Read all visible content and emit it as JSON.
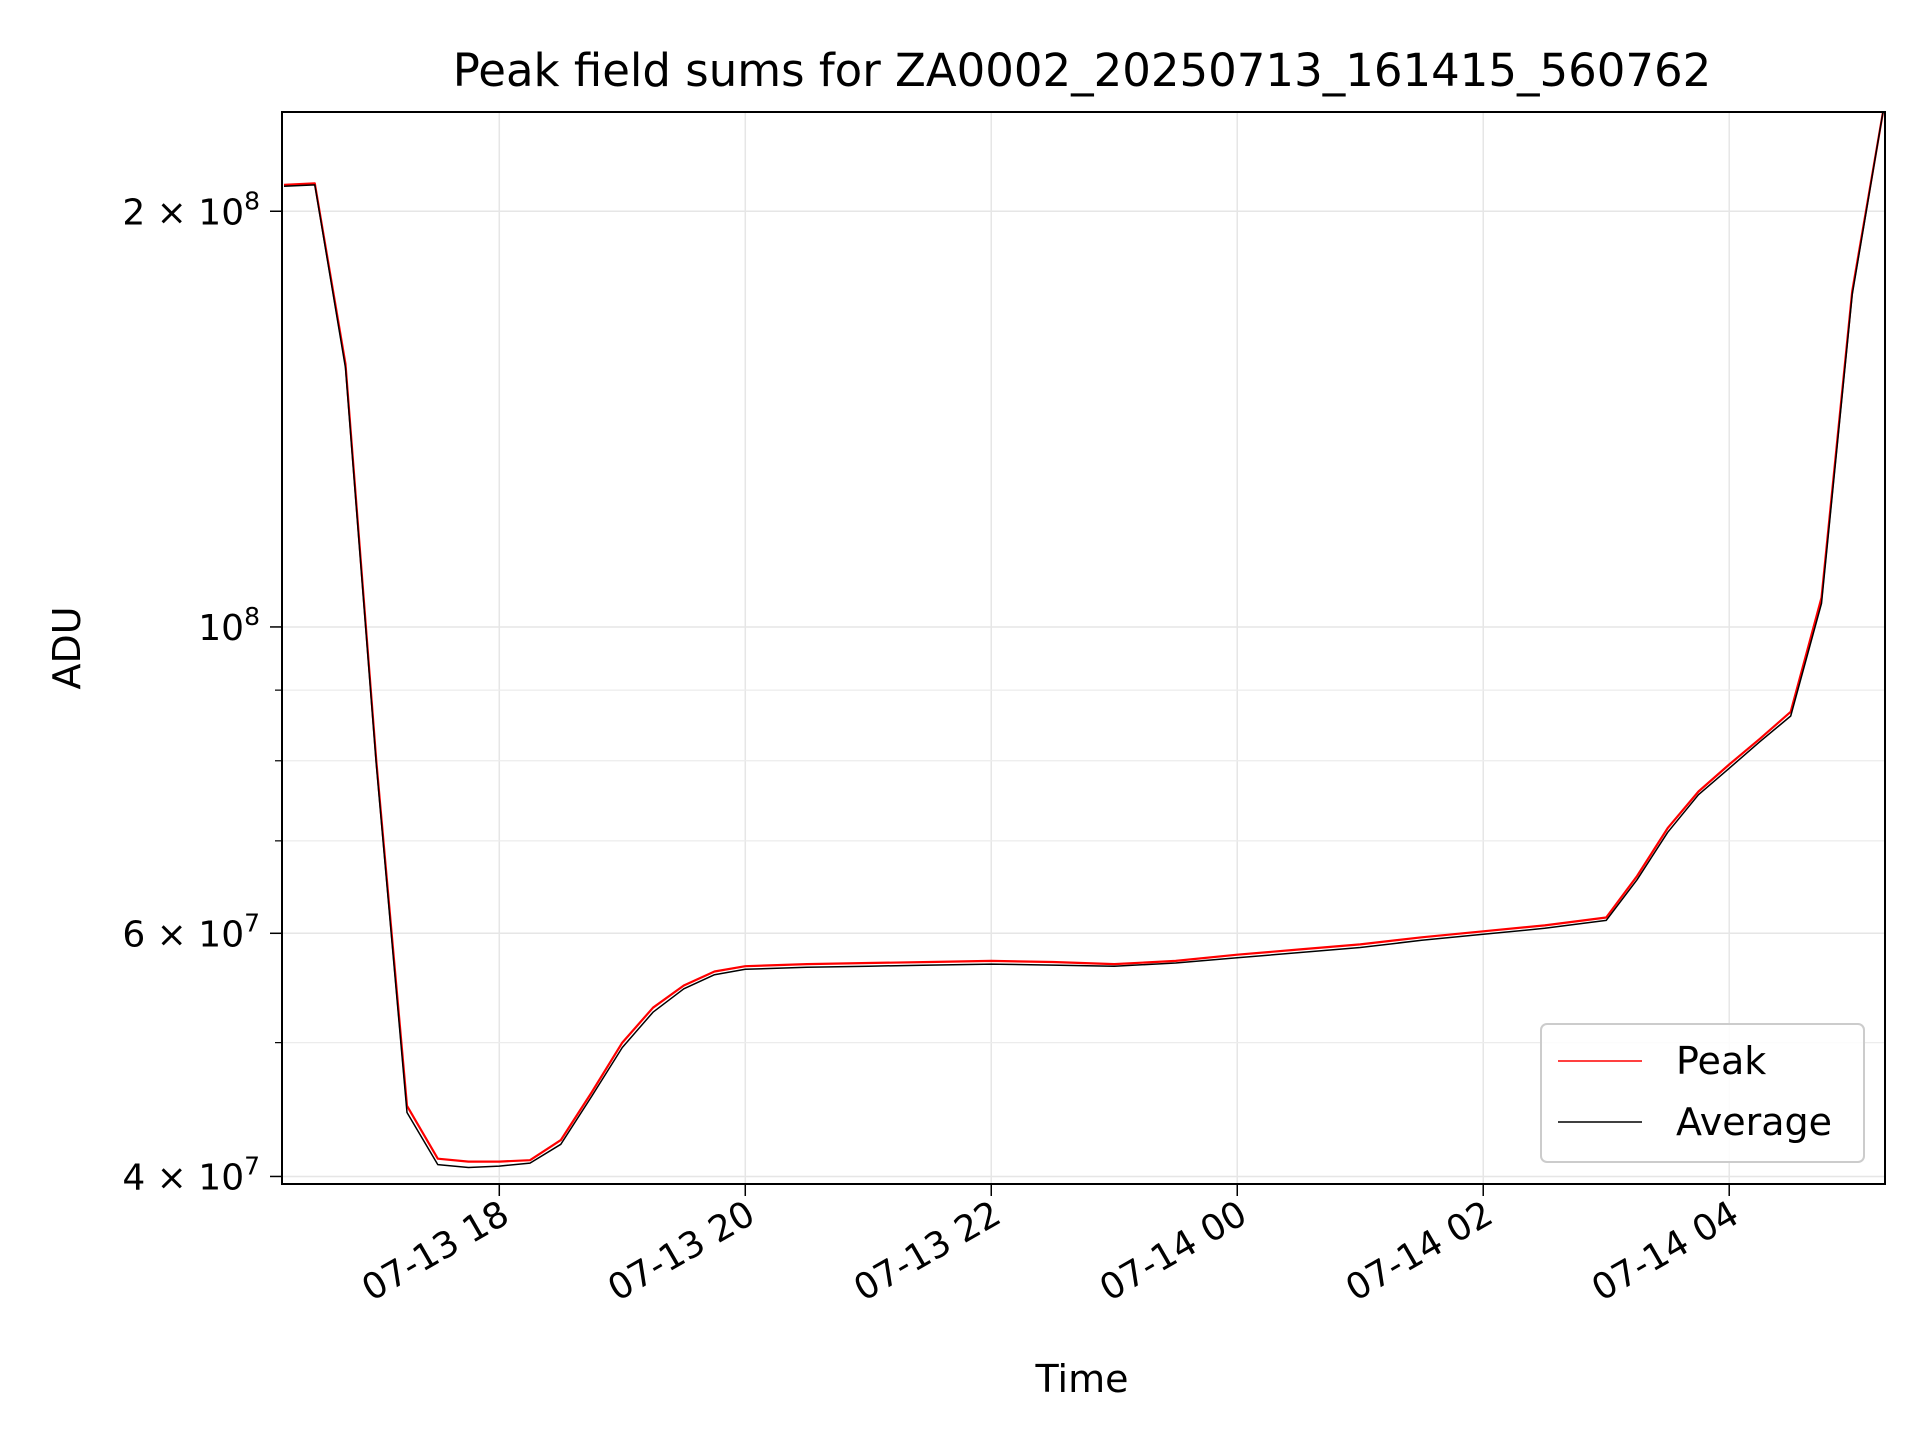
{
  "chart_data": {
    "type": "line",
    "title": "Peak field sums for ZA0002_20250713_161415_560762",
    "xlabel": "Time",
    "ylabel": "ADU",
    "yscale": "log",
    "grid": true,
    "legend_position": "lower-right",
    "x_range": [
      "2025-07-13 16:14",
      "2025-07-14 05:16"
    ],
    "ylim": [
      39500000,
      236000000
    ],
    "x_ticks": [
      "07-13 18",
      "07-13 20",
      "07-13 22",
      "07-14 00",
      "07-14 02",
      "07-14 04"
    ],
    "y_major_ticks": [
      {
        "value": 40000000,
        "label": "4 × 10",
        "exp": "7"
      },
      {
        "value": 60000000,
        "label": "6 × 10",
        "exp": "7"
      },
      {
        "value": 100000000,
        "label": "10",
        "exp": "8"
      },
      {
        "value": 200000000,
        "label": "2 × 10",
        "exp": "8"
      }
    ],
    "y_minor_ticks": [
      50000000,
      70000000,
      80000000,
      90000000
    ],
    "series": [
      {
        "name": "Peak",
        "color": "#ff0000",
        "x": [
          "2025-07-13 16:15",
          "2025-07-13 16:30",
          "2025-07-13 16:45",
          "2025-07-13 17:00",
          "2025-07-13 17:15",
          "2025-07-13 17:30",
          "2025-07-13 17:45",
          "2025-07-13 18:00",
          "2025-07-13 18:15",
          "2025-07-13 18:30",
          "2025-07-13 18:45",
          "2025-07-13 19:00",
          "2025-07-13 19:15",
          "2025-07-13 19:30",
          "2025-07-13 19:45",
          "2025-07-13 20:00",
          "2025-07-13 20:30",
          "2025-07-13 21:00",
          "2025-07-13 21:30",
          "2025-07-13 22:00",
          "2025-07-13 22:30",
          "2025-07-13 23:00",
          "2025-07-13 23:30",
          "2025-07-14 00:00",
          "2025-07-14 00:30",
          "2025-07-14 01:00",
          "2025-07-14 01:30",
          "2025-07-14 02:00",
          "2025-07-14 02:30",
          "2025-07-14 03:00",
          "2025-07-14 03:15",
          "2025-07-14 03:30",
          "2025-07-14 03:45",
          "2025-07-14 04:00",
          "2025-07-14 04:15",
          "2025-07-14 04:30",
          "2025-07-14 04:45",
          "2025-07-14 05:00",
          "2025-07-14 05:15"
        ],
        "values": [
          209000000,
          209500000,
          155000000,
          80000000,
          45000000,
          41200000,
          41000000,
          41000000,
          41100000,
          42500000,
          46000000,
          50000000,
          53000000,
          55000000,
          56300000,
          56800000,
          57000000,
          57100000,
          57200000,
          57300000,
          57200000,
          57000000,
          57300000,
          57900000,
          58400000,
          58900000,
          59600000,
          60200000,
          60800000,
          61600000,
          66000000,
          71500000,
          76000000,
          79500000,
          83000000,
          86800000,
          105000000,
          175000000,
          236000000
        ]
      },
      {
        "name": "Average",
        "color": "#000000",
        "x": [
          "2025-07-13 16:15",
          "2025-07-13 16:30",
          "2025-07-13 16:45",
          "2025-07-13 17:00",
          "2025-07-13 17:15",
          "2025-07-13 17:30",
          "2025-07-13 17:45",
          "2025-07-13 18:00",
          "2025-07-13 18:15",
          "2025-07-13 18:30",
          "2025-07-13 18:45",
          "2025-07-13 19:00",
          "2025-07-13 19:15",
          "2025-07-13 19:30",
          "2025-07-13 19:45",
          "2025-07-13 20:00",
          "2025-07-13 20:30",
          "2025-07-13 21:00",
          "2025-07-13 21:30",
          "2025-07-13 22:00",
          "2025-07-13 22:30",
          "2025-07-13 23:00",
          "2025-07-13 23:30",
          "2025-07-14 00:00",
          "2025-07-14 00:30",
          "2025-07-14 01:00",
          "2025-07-14 01:30",
          "2025-07-14 02:00",
          "2025-07-14 02:30",
          "2025-07-14 03:00",
          "2025-07-14 03:15",
          "2025-07-14 03:30",
          "2025-07-14 03:45",
          "2025-07-14 04:00",
          "2025-07-14 04:15",
          "2025-07-14 04:30",
          "2025-07-14 04:45",
          "2025-07-14 05:00",
          "2025-07-14 05:15"
        ],
        "values": [
          208500000,
          209000000,
          154000000,
          79500000,
          44500000,
          40800000,
          40600000,
          40700000,
          40900000,
          42200000,
          45700000,
          49600000,
          52600000,
          54700000,
          56000000,
          56500000,
          56700000,
          56800000,
          56900000,
          57000000,
          56900000,
          56800000,
          57100000,
          57600000,
          58100000,
          58600000,
          59300000,
          59900000,
          60500000,
          61300000,
          65600000,
          71000000,
          75600000,
          79000000,
          82600000,
          86200000,
          104000000,
          174000000,
          236000000
        ]
      }
    ]
  }
}
